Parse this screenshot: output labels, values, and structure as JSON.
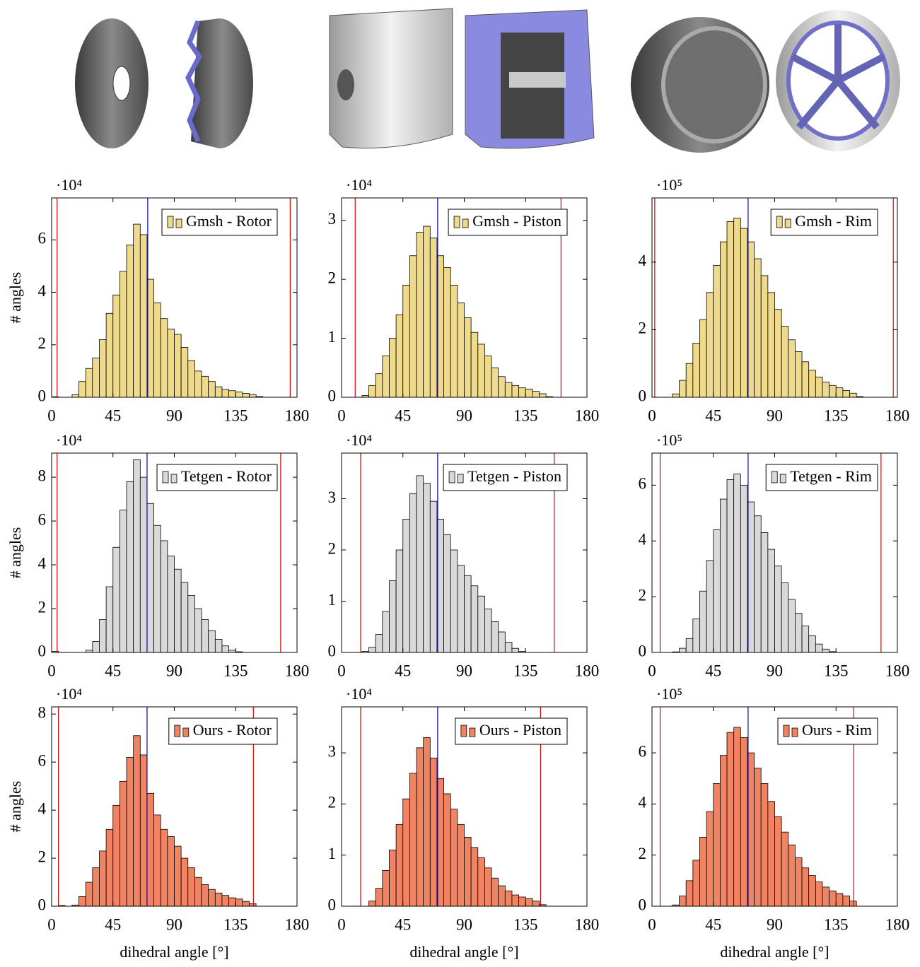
{
  "chart_data": [
    {
      "type": "histogram",
      "ylabel": "# angles",
      "y_multiplier": "·10⁴",
      "legend": "upper right",
      "series": [
        {
          "name": "Gmsh - Rotor",
          "color": "#efd98a",
          "values": [
            0.02,
            0,
            0,
            0.1,
            0.6,
            1.1,
            1.5,
            2.2,
            3.2,
            3.9,
            4.8,
            5.8,
            6.6,
            6.2,
            4.5,
            3.6,
            3.0,
            2.6,
            2.4,
            1.9,
            1.4,
            1.0,
            0.8,
            0.6,
            0.4,
            0.3,
            0.25,
            0.2,
            0.15,
            0.1,
            0.03,
            0,
            0,
            0,
            0,
            0
          ]
        }
      ],
      "bins": [
        0,
        5,
        10,
        15,
        20,
        25,
        30,
        35,
        40,
        45,
        50,
        55,
        60,
        65,
        70,
        75,
        80,
        85,
        90,
        95,
        100,
        105,
        110,
        115,
        120,
        125,
        130,
        135,
        140,
        145,
        150,
        155,
        160,
        165,
        170,
        175,
        180
      ],
      "xlim": [
        0,
        180
      ],
      "xticks": [
        0,
        45,
        90,
        135,
        180
      ],
      "ylim": [
        0,
        7.6
      ],
      "yticks": [
        0,
        2,
        4,
        6
      ],
      "reference_lines": [
        {
          "value": 4,
          "color": "#e00000"
        },
        {
          "value": 70.5,
          "color": "#0000c0"
        },
        {
          "value": 175,
          "color": "#e00000"
        }
      ]
    },
    {
      "type": "histogram",
      "y_multiplier": "·10⁴",
      "legend": "upper right",
      "series": [
        {
          "name": "Gmsh - Piston",
          "color": "#efd98a",
          "values": [
            0,
            0,
            0,
            0.03,
            0.2,
            0.4,
            0.7,
            1.0,
            1.4,
            1.9,
            2.4,
            2.8,
            2.9,
            2.7,
            2.4,
            2.2,
            1.9,
            1.6,
            1.35,
            1.1,
            0.9,
            0.7,
            0.5,
            0.35,
            0.25,
            0.2,
            0.16,
            0.14,
            0.1,
            0.06,
            0.01,
            0,
            0,
            0,
            0,
            0
          ]
        }
      ],
      "bins": [
        0,
        5,
        10,
        15,
        20,
        25,
        30,
        35,
        40,
        45,
        50,
        55,
        60,
        65,
        70,
        75,
        80,
        85,
        90,
        95,
        100,
        105,
        110,
        115,
        120,
        125,
        130,
        135,
        140,
        145,
        150,
        155,
        160,
        165,
        170,
        175,
        180
      ],
      "xlim": [
        0,
        180
      ],
      "xticks": [
        0,
        45,
        90,
        135,
        180
      ],
      "ylim": [
        0,
        3.38
      ],
      "yticks": [
        0,
        1,
        2,
        3
      ],
      "reference_lines": [
        {
          "value": 10,
          "color": "#e00000"
        },
        {
          "value": 70.5,
          "color": "#0000c0"
        },
        {
          "value": 161,
          "color": "#e00000"
        }
      ]
    },
    {
      "type": "histogram",
      "y_multiplier": "·10⁵",
      "legend": "upper right",
      "series": [
        {
          "name": "Gmsh - Rim",
          "color": "#efd98a",
          "values": [
            0,
            0,
            0,
            0.1,
            0.5,
            1.0,
            1.6,
            2.3,
            3.1,
            3.9,
            4.6,
            5.2,
            5.3,
            5.0,
            4.6,
            4.1,
            3.6,
            3.1,
            2.6,
            2.1,
            1.7,
            1.35,
            1.05,
            0.8,
            0.6,
            0.45,
            0.35,
            0.28,
            0.2,
            0.12,
            0.02,
            0,
            0,
            0,
            0,
            0
          ]
        }
      ],
      "bins": [
        0,
        5,
        10,
        15,
        20,
        25,
        30,
        35,
        40,
        45,
        50,
        55,
        60,
        65,
        70,
        75,
        80,
        85,
        90,
        95,
        100,
        105,
        110,
        115,
        120,
        125,
        130,
        135,
        140,
        145,
        150,
        155,
        160,
        165,
        170,
        175,
        180
      ],
      "xlim": [
        0,
        180
      ],
      "xticks": [
        0,
        45,
        90,
        135,
        180
      ],
      "ylim": [
        0,
        5.9
      ],
      "yticks": [
        0,
        2,
        4
      ],
      "reference_lines": [
        {
          "value": 2,
          "color": "#e00000"
        },
        {
          "value": 70.5,
          "color": "#0000c0"
        },
        {
          "value": 177,
          "color": "#e00000"
        }
      ]
    },
    {
      "type": "histogram",
      "ylabel": "# angles",
      "y_multiplier": "·10⁴",
      "legend": "upper right",
      "series": [
        {
          "name": "Tetgen - Rotor",
          "color": "#d9d9d9",
          "values": [
            0.05,
            0,
            0,
            0,
            0,
            0.1,
            0.5,
            1.5,
            3.0,
            4.8,
            6.5,
            7.8,
            8.8,
            8.0,
            6.8,
            5.8,
            5.1,
            4.4,
            3.8,
            3.2,
            2.6,
            2.0,
            1.5,
            1.0,
            0.6,
            0.3,
            0.1,
            0.03,
            0,
            0,
            0,
            0,
            0,
            0,
            0,
            0
          ]
        }
      ],
      "bins": [
        0,
        5,
        10,
        15,
        20,
        25,
        30,
        35,
        40,
        45,
        50,
        55,
        60,
        65,
        70,
        75,
        80,
        85,
        90,
        95,
        100,
        105,
        110,
        115,
        120,
        125,
        130,
        135,
        140,
        145,
        150,
        155,
        160,
        165,
        170,
        175,
        180
      ],
      "xlim": [
        0,
        180
      ],
      "xticks": [
        0,
        45,
        90,
        135,
        180
      ],
      "ylim": [
        0,
        9.1
      ],
      "yticks": [
        0,
        2,
        4,
        6,
        8
      ],
      "reference_lines": [
        {
          "value": 4,
          "color": "#e00000"
        },
        {
          "value": 70,
          "color": "#0000c0"
        },
        {
          "value": 168,
          "color": "#e00000"
        }
      ]
    },
    {
      "type": "histogram",
      "y_multiplier": "·10⁴",
      "legend": "upper right",
      "series": [
        {
          "name": "Tetgen - Piston",
          "color": "#d9d9d9",
          "values": [
            0,
            0,
            0,
            0.02,
            0.1,
            0.35,
            0.8,
            1.4,
            2.0,
            2.6,
            3.1,
            3.45,
            3.3,
            2.95,
            2.6,
            2.3,
            2.0,
            1.7,
            1.5,
            1.3,
            1.1,
            0.85,
            0.6,
            0.4,
            0.2,
            0.08,
            0.02,
            0,
            0,
            0,
            0,
            0,
            0,
            0,
            0,
            0
          ]
        }
      ],
      "bins": [
        0,
        5,
        10,
        15,
        20,
        25,
        30,
        35,
        40,
        45,
        50,
        55,
        60,
        65,
        70,
        75,
        80,
        85,
        90,
        95,
        100,
        105,
        110,
        115,
        120,
        125,
        130,
        135,
        140,
        145,
        150,
        155,
        160,
        165,
        170,
        175,
        180
      ],
      "xlim": [
        0,
        180
      ],
      "xticks": [
        0,
        45,
        90,
        135,
        180
      ],
      "ylim": [
        0,
        3.89
      ],
      "yticks": [
        0,
        1,
        2,
        3
      ],
      "reference_lines": [
        {
          "value": 14,
          "color": "#e00000"
        },
        {
          "value": 70.5,
          "color": "#0000c0"
        },
        {
          "value": 156,
          "color": "#e00000"
        }
      ]
    },
    {
      "type": "histogram",
      "y_multiplier": "·10⁵",
      "legend": "upper right",
      "series": [
        {
          "name": "Tetgen - Rim",
          "color": "#d9d9d9",
          "values": [
            0,
            0,
            0,
            0.02,
            0.15,
            0.5,
            1.2,
            2.2,
            3.3,
            4.4,
            5.5,
            6.2,
            6.4,
            6.0,
            5.4,
            4.9,
            4.3,
            3.7,
            3.1,
            2.5,
            1.9,
            1.4,
            0.95,
            0.6,
            0.3,
            0.12,
            0.03,
            0,
            0,
            0,
            0,
            0,
            0,
            0,
            0,
            0
          ]
        }
      ],
      "bins": [
        0,
        5,
        10,
        15,
        20,
        25,
        30,
        35,
        40,
        45,
        50,
        55,
        60,
        65,
        70,
        75,
        80,
        85,
        90,
        95,
        100,
        105,
        110,
        115,
        120,
        125,
        130,
        135,
        140,
        145,
        150,
        155,
        160,
        165,
        170,
        175,
        180
      ],
      "xlim": [
        0,
        180
      ],
      "xticks": [
        0,
        45,
        90,
        135,
        180
      ],
      "ylim": [
        0,
        7.15
      ],
      "yticks": [
        0,
        2,
        4,
        6
      ],
      "reference_lines": [
        {
          "value": 6,
          "color": "#e00000"
        },
        {
          "value": 70.5,
          "color": "#0000c0"
        },
        {
          "value": 168,
          "color": "#e00000"
        }
      ]
    },
    {
      "type": "histogram",
      "ylabel": "# angles",
      "xlabel": "dihedral angle [°]",
      "y_multiplier": "·10⁴",
      "legend": "upper right",
      "series": [
        {
          "name": "Ours - Rotor",
          "color": "#f08462",
          "values": [
            0,
            0.03,
            0,
            0.05,
            0.4,
            1.0,
            1.6,
            2.3,
            3.2,
            4.2,
            5.2,
            6.2,
            7.1,
            6.3,
            4.7,
            3.8,
            3.2,
            2.9,
            2.5,
            2.0,
            1.6,
            1.2,
            0.9,
            0.7,
            0.55,
            0.45,
            0.35,
            0.3,
            0.2,
            0.1,
            0,
            0,
            0,
            0,
            0,
            0
          ]
        }
      ],
      "bins": [
        0,
        5,
        10,
        15,
        20,
        25,
        30,
        35,
        40,
        45,
        50,
        55,
        60,
        65,
        70,
        75,
        80,
        85,
        90,
        95,
        100,
        105,
        110,
        115,
        120,
        125,
        130,
        135,
        140,
        145,
        150,
        155,
        160,
        165,
        170,
        175,
        180
      ],
      "xlim": [
        0,
        180
      ],
      "xticks": [
        0,
        45,
        90,
        135,
        180
      ],
      "ylim": [
        0,
        8.3
      ],
      "yticks": [
        0,
        2,
        4,
        6,
        8
      ],
      "reference_lines": [
        {
          "value": 5,
          "color": "#e00000"
        },
        {
          "value": 70,
          "color": "#0000c0"
        },
        {
          "value": 148,
          "color": "#e00000"
        }
      ]
    },
    {
      "type": "histogram",
      "xlabel": "dihedral angle [°]",
      "y_multiplier": "·10⁴",
      "legend": "upper right",
      "series": [
        {
          "name": "Ours - Piston",
          "color": "#f08462",
          "values": [
            0,
            0,
            0,
            0,
            0.1,
            0.35,
            0.7,
            1.1,
            1.6,
            2.1,
            2.6,
            3.1,
            3.3,
            2.9,
            2.5,
            2.2,
            1.9,
            1.6,
            1.35,
            1.15,
            0.95,
            0.75,
            0.55,
            0.4,
            0.3,
            0.22,
            0.18,
            0.15,
            0.1,
            0.03,
            0,
            0,
            0,
            0,
            0,
            0
          ]
        }
      ],
      "bins": [
        0,
        5,
        10,
        15,
        20,
        25,
        30,
        35,
        40,
        45,
        50,
        55,
        60,
        65,
        70,
        75,
        80,
        85,
        90,
        95,
        100,
        105,
        110,
        115,
        120,
        125,
        130,
        135,
        140,
        145,
        150,
        155,
        160,
        165,
        170,
        175,
        180
      ],
      "xlim": [
        0,
        180
      ],
      "xticks": [
        0,
        45,
        90,
        135,
        180
      ],
      "ylim": [
        0,
        3.9
      ],
      "yticks": [
        0,
        1,
        2,
        3
      ],
      "reference_lines": [
        {
          "value": 14,
          "color": "#e00000"
        },
        {
          "value": 70.5,
          "color": "#0000c0"
        },
        {
          "value": 146,
          "color": "#e00000"
        }
      ]
    },
    {
      "type": "histogram",
      "xlabel": "dihedral angle [°]",
      "y_multiplier": "·10⁵",
      "legend": "upper right",
      "series": [
        {
          "name": "Ours - Rim",
          "color": "#f08462",
          "values": [
            0,
            0,
            0,
            0.05,
            0.4,
            1.0,
            1.8,
            2.7,
            3.7,
            4.8,
            5.9,
            6.8,
            7.0,
            6.6,
            6.0,
            5.4,
            4.8,
            4.1,
            3.5,
            2.9,
            2.4,
            1.9,
            1.5,
            1.2,
            0.95,
            0.75,
            0.6,
            0.5,
            0.4,
            0.2,
            0,
            0,
            0,
            0,
            0,
            0
          ]
        }
      ],
      "bins": [
        0,
        5,
        10,
        15,
        20,
        25,
        30,
        35,
        40,
        45,
        50,
        55,
        60,
        65,
        70,
        75,
        80,
        85,
        90,
        95,
        100,
        105,
        110,
        115,
        120,
        125,
        130,
        135,
        140,
        145,
        150,
        155,
        160,
        165,
        170,
        175,
        180
      ],
      "xlim": [
        0,
        180
      ],
      "xticks": [
        0,
        45,
        90,
        135,
        180
      ],
      "ylim": [
        0,
        7.8
      ],
      "yticks": [
        0,
        2,
        4,
        6
      ],
      "reference_lines": [
        {
          "value": 6,
          "color": "#e00000"
        },
        {
          "value": 70.5,
          "color": "#0000c0"
        },
        {
          "value": 148,
          "color": "#e00000"
        }
      ]
    }
  ]
}
